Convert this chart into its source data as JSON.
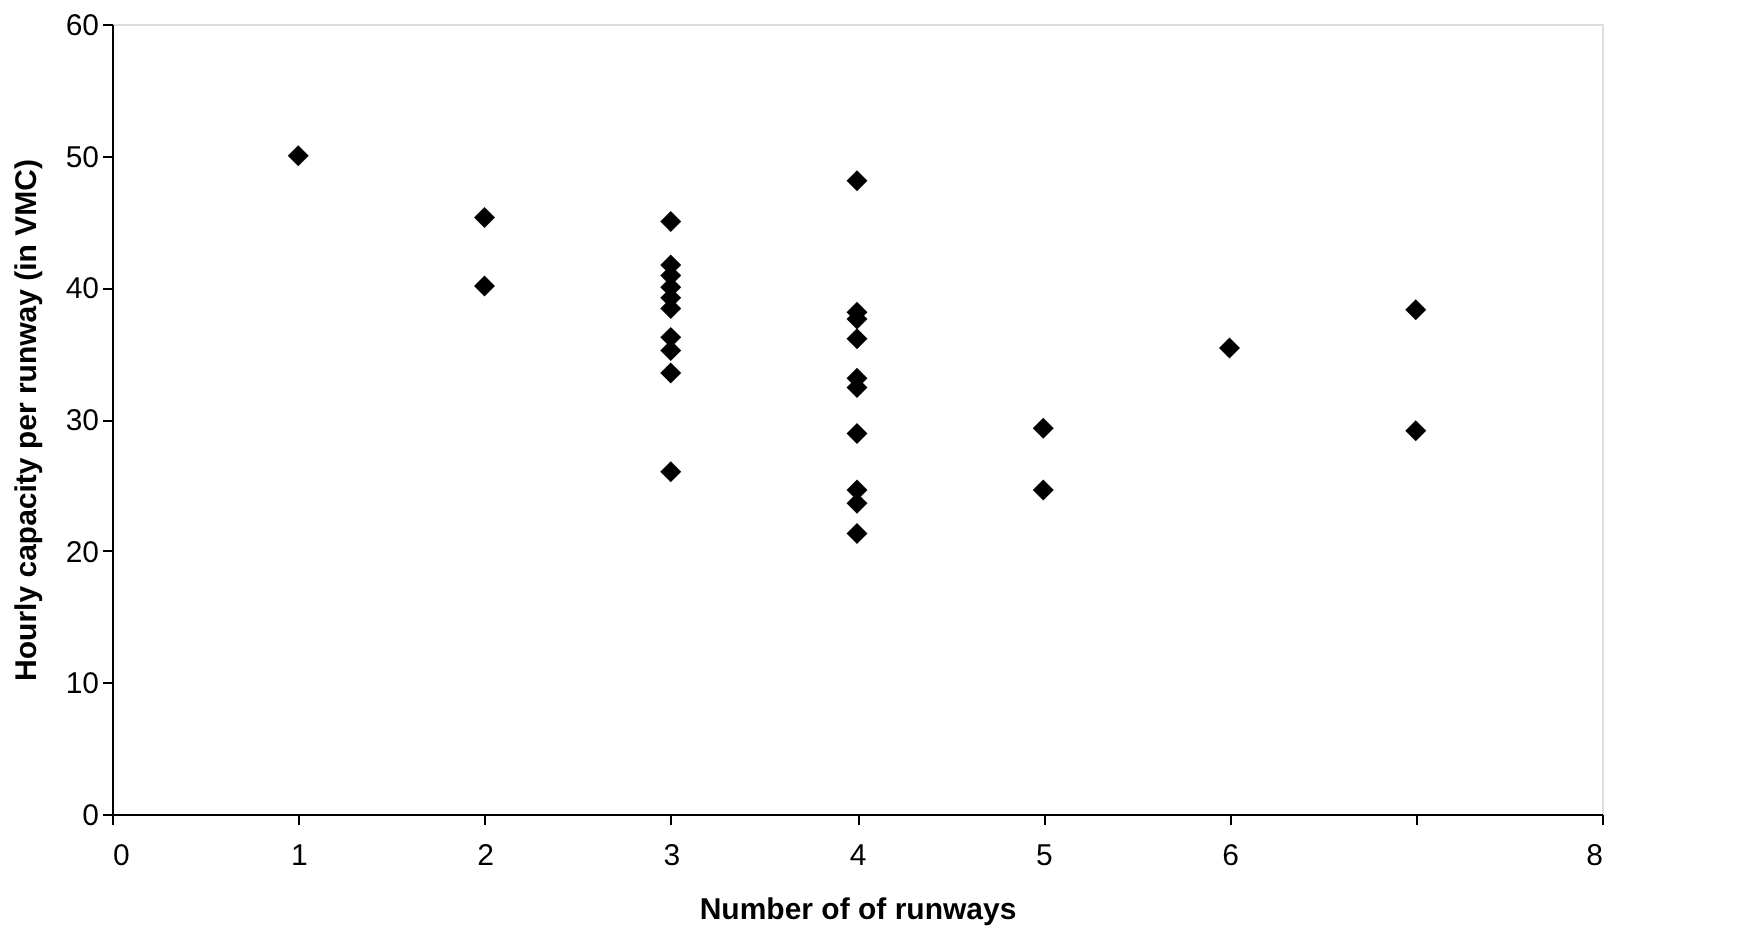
{
  "chart_data": {
    "type": "scatter",
    "xlabel": "Number of of runways",
    "ylabel": "Hourly capacity per runway (in VMC)",
    "x": [
      1,
      2,
      2,
      3,
      3,
      3,
      3,
      3,
      3,
      3,
      3,
      3,
      3,
      4,
      4,
      4,
      4,
      4,
      4,
      4,
      4,
      4,
      4,
      5,
      5,
      6,
      7,
      7
    ],
    "series": [
      {
        "color": "#000000",
        "values": [
          50,
          45.3,
          40.1,
          45.0,
          41.7,
          40.9,
          40,
          39.2,
          38.4,
          36.2,
          35.2,
          33.5,
          26.0,
          48.1,
          38.1,
          37.6,
          36.1,
          33.1,
          32.4,
          28.9,
          24.6,
          23.6,
          21.3,
          29.3,
          24.6,
          35.4,
          38.3,
          29.1
        ]
      }
    ],
    "xlim": [
      0,
      8
    ],
    "xticks": [
      0,
      1,
      2,
      3,
      4,
      5,
      6,
      {
        "value": 7,
        "label": null
      },
      8
    ],
    "ylim": [
      0,
      60
    ],
    "yticks": [
      0,
      10,
      20,
      30,
      40,
      50,
      60
    ],
    "marker": "diamond",
    "grid": false,
    "legend": false
  }
}
